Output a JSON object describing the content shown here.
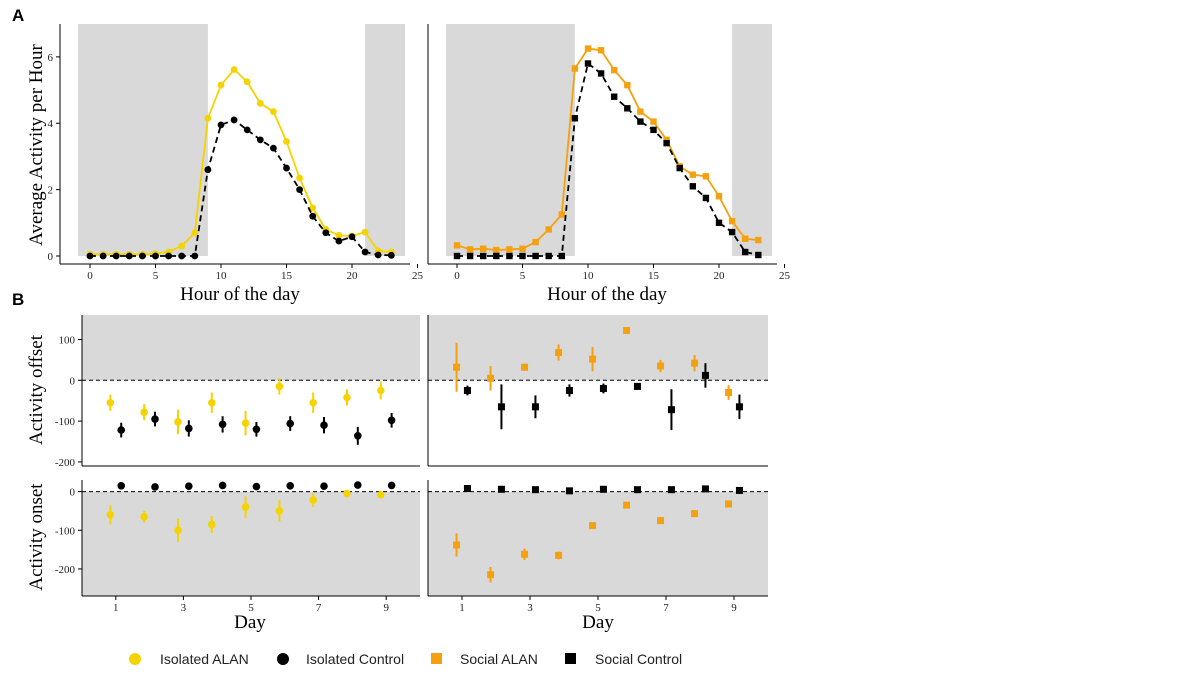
{
  "figure": {
    "panel_labels": [
      "A",
      "B"
    ],
    "colors": {
      "isolated_alan": "#F5D300",
      "isolated_control": "#000000",
      "social_alan": "#F5A10F",
      "social_control": "#000000",
      "shade": "#D9D9D9"
    }
  },
  "legend": {
    "items": [
      {
        "label": "Isolated ALAN",
        "marker": "circle",
        "color": "#F5D300"
      },
      {
        "label": "Isolated Control",
        "marker": "circle",
        "color": "#000000"
      },
      {
        "label": "Social ALAN",
        "marker": "square",
        "color": "#F5A10F"
      },
      {
        "label": "Social Control",
        "marker": "square",
        "color": "#000000"
      }
    ]
  },
  "chart_data": [
    {
      "id": "A-left",
      "type": "line",
      "xlabel": "Hour of the day",
      "ylabel": "Average Activity per Hour",
      "xlim": [
        -1,
        24
      ],
      "ylim": [
        0,
        6.9
      ],
      "xticks": [
        0,
        5,
        10,
        15,
        20,
        25
      ],
      "yticks": [
        0,
        2,
        4,
        6
      ],
      "dark_periods": [
        [
          -1,
          9
        ],
        [
          21,
          24
        ]
      ],
      "marker": "circle",
      "series": [
        {
          "name": "Isolated ALAN",
          "color": "#F5D300",
          "dash": "solid",
          "x": [
            0,
            1,
            2,
            3,
            4,
            5,
            6,
            7,
            8,
            9,
            10,
            11,
            12,
            13,
            14,
            15,
            16,
            17,
            18,
            19,
            20,
            21,
            22,
            23
          ],
          "y": [
            0.05,
            0.05,
            0.05,
            0.05,
            0.05,
            0.07,
            0.12,
            0.3,
            0.7,
            4.15,
            5.15,
            5.62,
            5.25,
            4.6,
            4.35,
            3.45,
            2.35,
            1.45,
            0.8,
            0.62,
            0.6,
            0.72,
            0.15,
            0.12
          ]
        },
        {
          "name": "Isolated Control",
          "color": "#000000",
          "dash": "dashed",
          "x": [
            0,
            1,
            2,
            3,
            4,
            5,
            6,
            7,
            8,
            9,
            10,
            11,
            12,
            13,
            14,
            15,
            16,
            17,
            18,
            19,
            20,
            21,
            22,
            23
          ],
          "y": [
            0,
            0,
            0,
            0,
            0,
            0,
            0,
            0,
            0,
            2.6,
            3.95,
            4.1,
            3.8,
            3.5,
            3.25,
            2.65,
            2.0,
            1.2,
            0.7,
            0.45,
            0.58,
            0.12,
            0.03,
            0.02
          ]
        }
      ]
    },
    {
      "id": "A-right",
      "type": "line",
      "xlabel": "Hour of the day",
      "ylabel": "",
      "xlim": [
        -1,
        24
      ],
      "ylim": [
        0,
        6.9
      ],
      "xticks": [
        0,
        5,
        10,
        15,
        20,
        25
      ],
      "yticks": [],
      "dark_periods": [
        [
          -1,
          9
        ],
        [
          21,
          24
        ]
      ],
      "marker": "square",
      "series": [
        {
          "name": "Social ALAN",
          "color": "#F5A10F",
          "dash": "solid",
          "x": [
            0,
            1,
            2,
            3,
            4,
            5,
            6,
            7,
            8,
            9,
            10,
            11,
            12,
            13,
            14,
            15,
            16,
            17,
            18,
            19,
            20,
            21,
            22,
            23
          ],
          "y": [
            0.32,
            0.2,
            0.22,
            0.18,
            0.2,
            0.22,
            0.42,
            0.8,
            1.25,
            5.65,
            6.25,
            6.2,
            5.6,
            5.15,
            4.35,
            4.05,
            3.5,
            2.7,
            2.45,
            2.4,
            1.8,
            1.05,
            0.52,
            0.48
          ]
        },
        {
          "name": "Social Control",
          "color": "#000000",
          "dash": "dashed",
          "x": [
            0,
            1,
            2,
            3,
            4,
            5,
            6,
            7,
            8,
            9,
            10,
            11,
            12,
            13,
            14,
            15,
            16,
            17,
            18,
            19,
            20,
            21,
            22,
            23
          ],
          "y": [
            0,
            0,
            0,
            0,
            0,
            0,
            0,
            0,
            0,
            4.15,
            5.8,
            5.5,
            4.8,
            4.45,
            4.05,
            3.8,
            3.4,
            2.65,
            2.1,
            1.75,
            1.0,
            0.72,
            0.12,
            0.03
          ]
        }
      ]
    },
    {
      "id": "B-offset-isolated",
      "type": "scatter",
      "ylabel": "Activity offset",
      "xlabel": "",
      "xlim": [
        0.0,
        10.0
      ],
      "ylim": [
        -210,
        160
      ],
      "yticks": [
        100,
        0,
        -100,
        -200
      ],
      "xticks": [],
      "shade": "above_zero",
      "marker": "circle",
      "series": [
        {
          "name": "Isolated ALAN",
          "color": "#F5D300",
          "x": [
            1,
            2,
            3,
            4,
            5,
            6,
            7,
            8,
            9
          ],
          "y": [
            -55,
            -78,
            -102,
            -55,
            -105,
            -15,
            -55,
            -42,
            -25
          ],
          "err": [
            20,
            20,
            30,
            25,
            30,
            20,
            25,
            20,
            22
          ]
        },
        {
          "name": "Isolated Control",
          "color": "#000000",
          "x": [
            1,
            2,
            3,
            4,
            5,
            6,
            7,
            8,
            9
          ],
          "y": [
            -122,
            -95,
            -118,
            -108,
            -120,
            -106,
            -110,
            -136,
            -98
          ],
          "err": [
            18,
            18,
            20,
            20,
            18,
            18,
            20,
            22,
            18
          ]
        }
      ]
    },
    {
      "id": "B-offset-social",
      "type": "scatter",
      "ylabel": "",
      "xlabel": "",
      "xlim": [
        0.0,
        10.0
      ],
      "ylim": [
        -210,
        160
      ],
      "yticks": [],
      "xticks": [],
      "shade": "above_zero",
      "marker": "square",
      "series": [
        {
          "name": "Social ALAN",
          "color": "#F5A10F",
          "x": [
            1,
            2,
            3,
            4,
            5,
            6,
            7,
            8,
            9
          ],
          "y": [
            32,
            5,
            32,
            68,
            52,
            122,
            35,
            42,
            -30
          ],
          "err": [
            60,
            30,
            8,
            20,
            30,
            4,
            15,
            20,
            18
          ]
        },
        {
          "name": "Social Control",
          "color": "#000000",
          "x": [
            1,
            2,
            3,
            4,
            5,
            6,
            7,
            8,
            9
          ],
          "y": [
            -25,
            -65,
            -65,
            -25,
            -20,
            -15,
            -72,
            12,
            -65
          ],
          "err": [
            12,
            55,
            28,
            15,
            12,
            8,
            50,
            30,
            30
          ]
        }
      ]
    },
    {
      "id": "B-onset-isolated",
      "type": "scatter",
      "ylabel": "Activity onset",
      "xlabel": "Day",
      "xlim": [
        0.0,
        10.0
      ],
      "ylim": [
        -270,
        30
      ],
      "yticks": [
        0,
        -100,
        -200
      ],
      "xticks": [
        1,
        3,
        5,
        7,
        9
      ],
      "shade": "below_zero",
      "marker": "circle",
      "series": [
        {
          "name": "Isolated ALAN",
          "color": "#F5D300",
          "x": [
            1,
            2,
            3,
            4,
            5,
            6,
            7,
            8,
            9
          ],
          "y": [
            -60,
            -65,
            -100,
            -85,
            -40,
            -50,
            -22,
            -5,
            -8
          ],
          "err": [
            25,
            15,
            30,
            22,
            28,
            28,
            18,
            4,
            4
          ]
        },
        {
          "name": "Isolated Control",
          "color": "#000000",
          "x": [
            1,
            2,
            3,
            4,
            5,
            6,
            7,
            8,
            9
          ],
          "y": [
            15,
            12,
            14,
            16,
            13,
            15,
            14,
            17,
            16
          ],
          "err": [
            3,
            3,
            3,
            3,
            3,
            3,
            3,
            3,
            3
          ]
        }
      ]
    },
    {
      "id": "B-onset-social",
      "type": "scatter",
      "ylabel": "",
      "xlabel": "Day",
      "xlim": [
        0.0,
        10.0
      ],
      "ylim": [
        -270,
        30
      ],
      "yticks": [],
      "xticks": [
        1,
        3,
        5,
        7,
        9
      ],
      "shade": "below_zero",
      "marker": "square",
      "series": [
        {
          "name": "Social ALAN",
          "color": "#F5A10F",
          "x": [
            1,
            2,
            3,
            4,
            5,
            6,
            7,
            8,
            9
          ],
          "y": [
            -138,
            -215,
            -162,
            -165,
            -88,
            -35,
            -75,
            -57,
            -32
          ],
          "err": [
            30,
            20,
            15,
            10,
            5,
            4,
            5,
            4,
            4
          ]
        },
        {
          "name": "Social Control",
          "color": "#000000",
          "x": [
            1,
            2,
            3,
            4,
            5,
            6,
            7,
            8,
            9
          ],
          "y": [
            8,
            6,
            5,
            2,
            6,
            5,
            5,
            7,
            3
          ],
          "err": [
            3,
            3,
            3,
            3,
            3,
            3,
            3,
            3,
            3
          ]
        }
      ]
    }
  ]
}
